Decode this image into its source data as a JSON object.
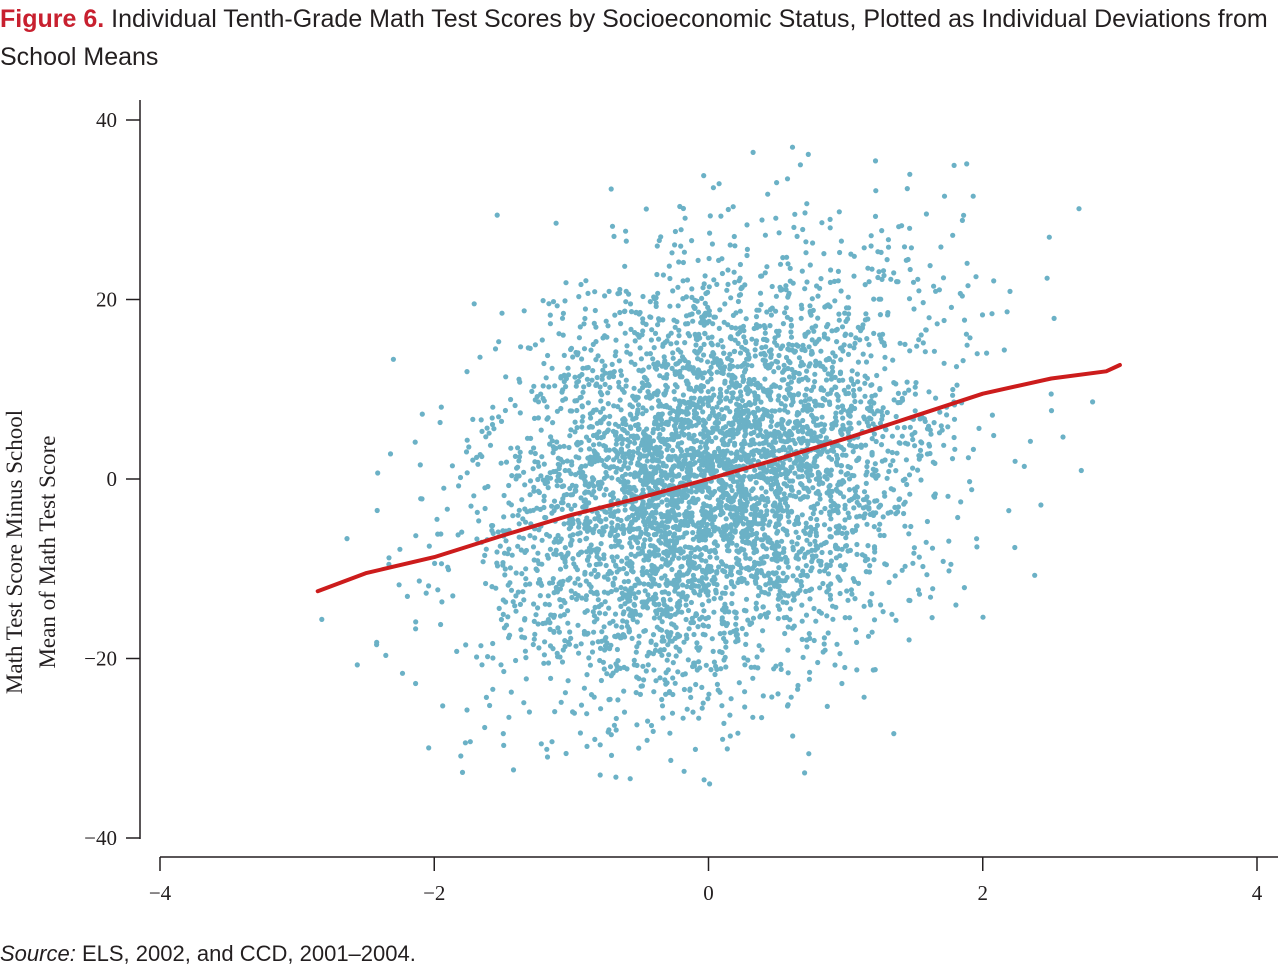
{
  "figure": {
    "label": "Figure 6.",
    "title": " Individual Tenth-Grade Math Test Scores by Socioeconomic Status, Plotted as Individual Deviations from School Means"
  },
  "source": {
    "label": "Source:",
    "text": " ELS, 2002, and CCD, 2001–2004."
  },
  "colors": {
    "points": "#6bb1c6",
    "fit_line": "#cc1c1c",
    "title_accent": "#c8202f",
    "axis": "#231f20"
  },
  "chart_data": {
    "type": "scatter",
    "title": "",
    "xlabel": "",
    "ylabel_lines": [
      "Math Test Score Minus School",
      "Mean of Math Test Score"
    ],
    "xlim": [
      -4,
      4
    ],
    "ylim": [
      -40,
      40
    ],
    "x_ticks": [
      -4,
      -2,
      0,
      2,
      4
    ],
    "x_tick_labels": [
      "−4",
      "−2",
      "0",
      "2",
      "4"
    ],
    "y_ticks": [
      40,
      20,
      0,
      -20,
      -40
    ],
    "y_tick_labels": [
      "40",
      "20",
      "0",
      "−20",
      "−40"
    ],
    "grid": false,
    "scatter_summary": {
      "approx_point_count": 5000,
      "x_mean": 0.0,
      "x_sd": 0.8,
      "x_range": [
        -2.85,
        3.0
      ],
      "y_sd": 11.5,
      "y_range": [
        -34,
        40
      ],
      "slope": 4.2
    },
    "fit_line": {
      "name": "",
      "x": [
        -2.85,
        -2.5,
        -2.0,
        -1.5,
        -1.0,
        -0.5,
        0.0,
        0.5,
        1.0,
        1.5,
        2.0,
        2.5,
        2.9,
        3.0
      ],
      "y": [
        -12.5,
        -10.5,
        -8.7,
        -6.3,
        -4.0,
        -2.1,
        0.0,
        2.2,
        4.5,
        7.0,
        9.5,
        11.2,
        12.0,
        12.7
      ]
    }
  }
}
